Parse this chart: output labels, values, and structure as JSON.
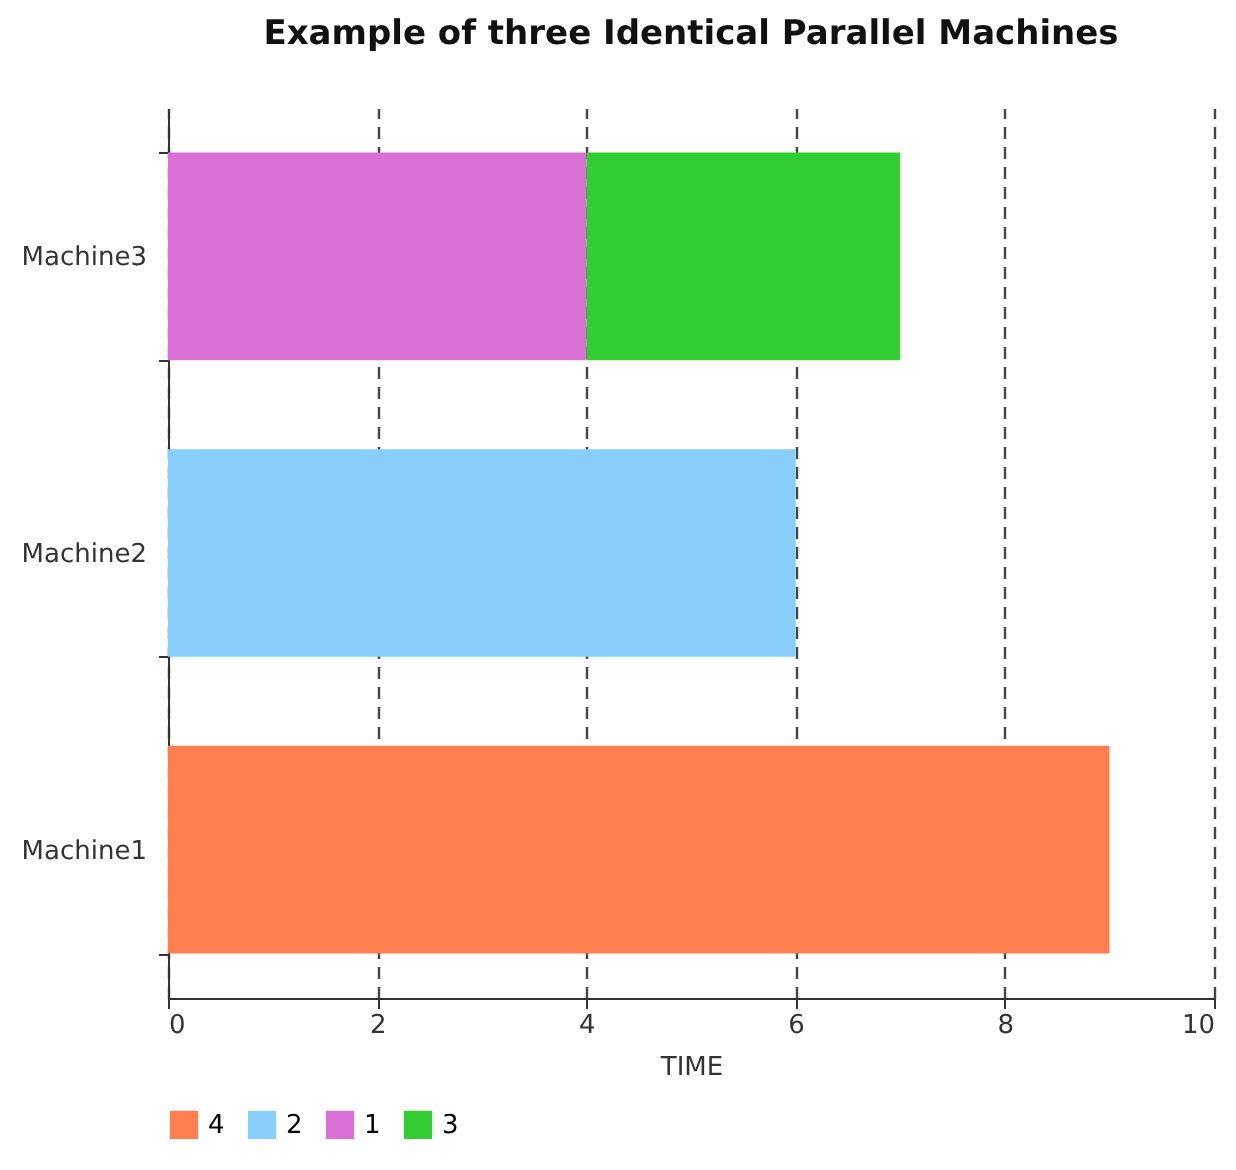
{
  "chart_data": {
    "type": "bar",
    "orientation": "horizontal",
    "stacked": true,
    "title": "Example of three Identical Parallel Machines",
    "xlabel": "TIME",
    "categories": [
      "Machine3",
      "Machine2",
      "Machine1"
    ],
    "series": [
      {
        "name": "4",
        "color": "#ff7f50",
        "values": [
          null,
          null,
          9
        ]
      },
      {
        "name": "2",
        "color": "#87cefa",
        "values": [
          null,
          6,
          null
        ]
      },
      {
        "name": "1",
        "color": "#da70d6",
        "values": [
          4,
          null,
          null
        ]
      },
      {
        "name": "3",
        "color": "#32cd32",
        "values": [
          3,
          null,
          null
        ]
      }
    ],
    "xlim": [
      0,
      10
    ],
    "xticks": [
      0,
      2,
      4,
      6,
      8,
      10
    ],
    "grid": "x",
    "legend": "bottom"
  }
}
